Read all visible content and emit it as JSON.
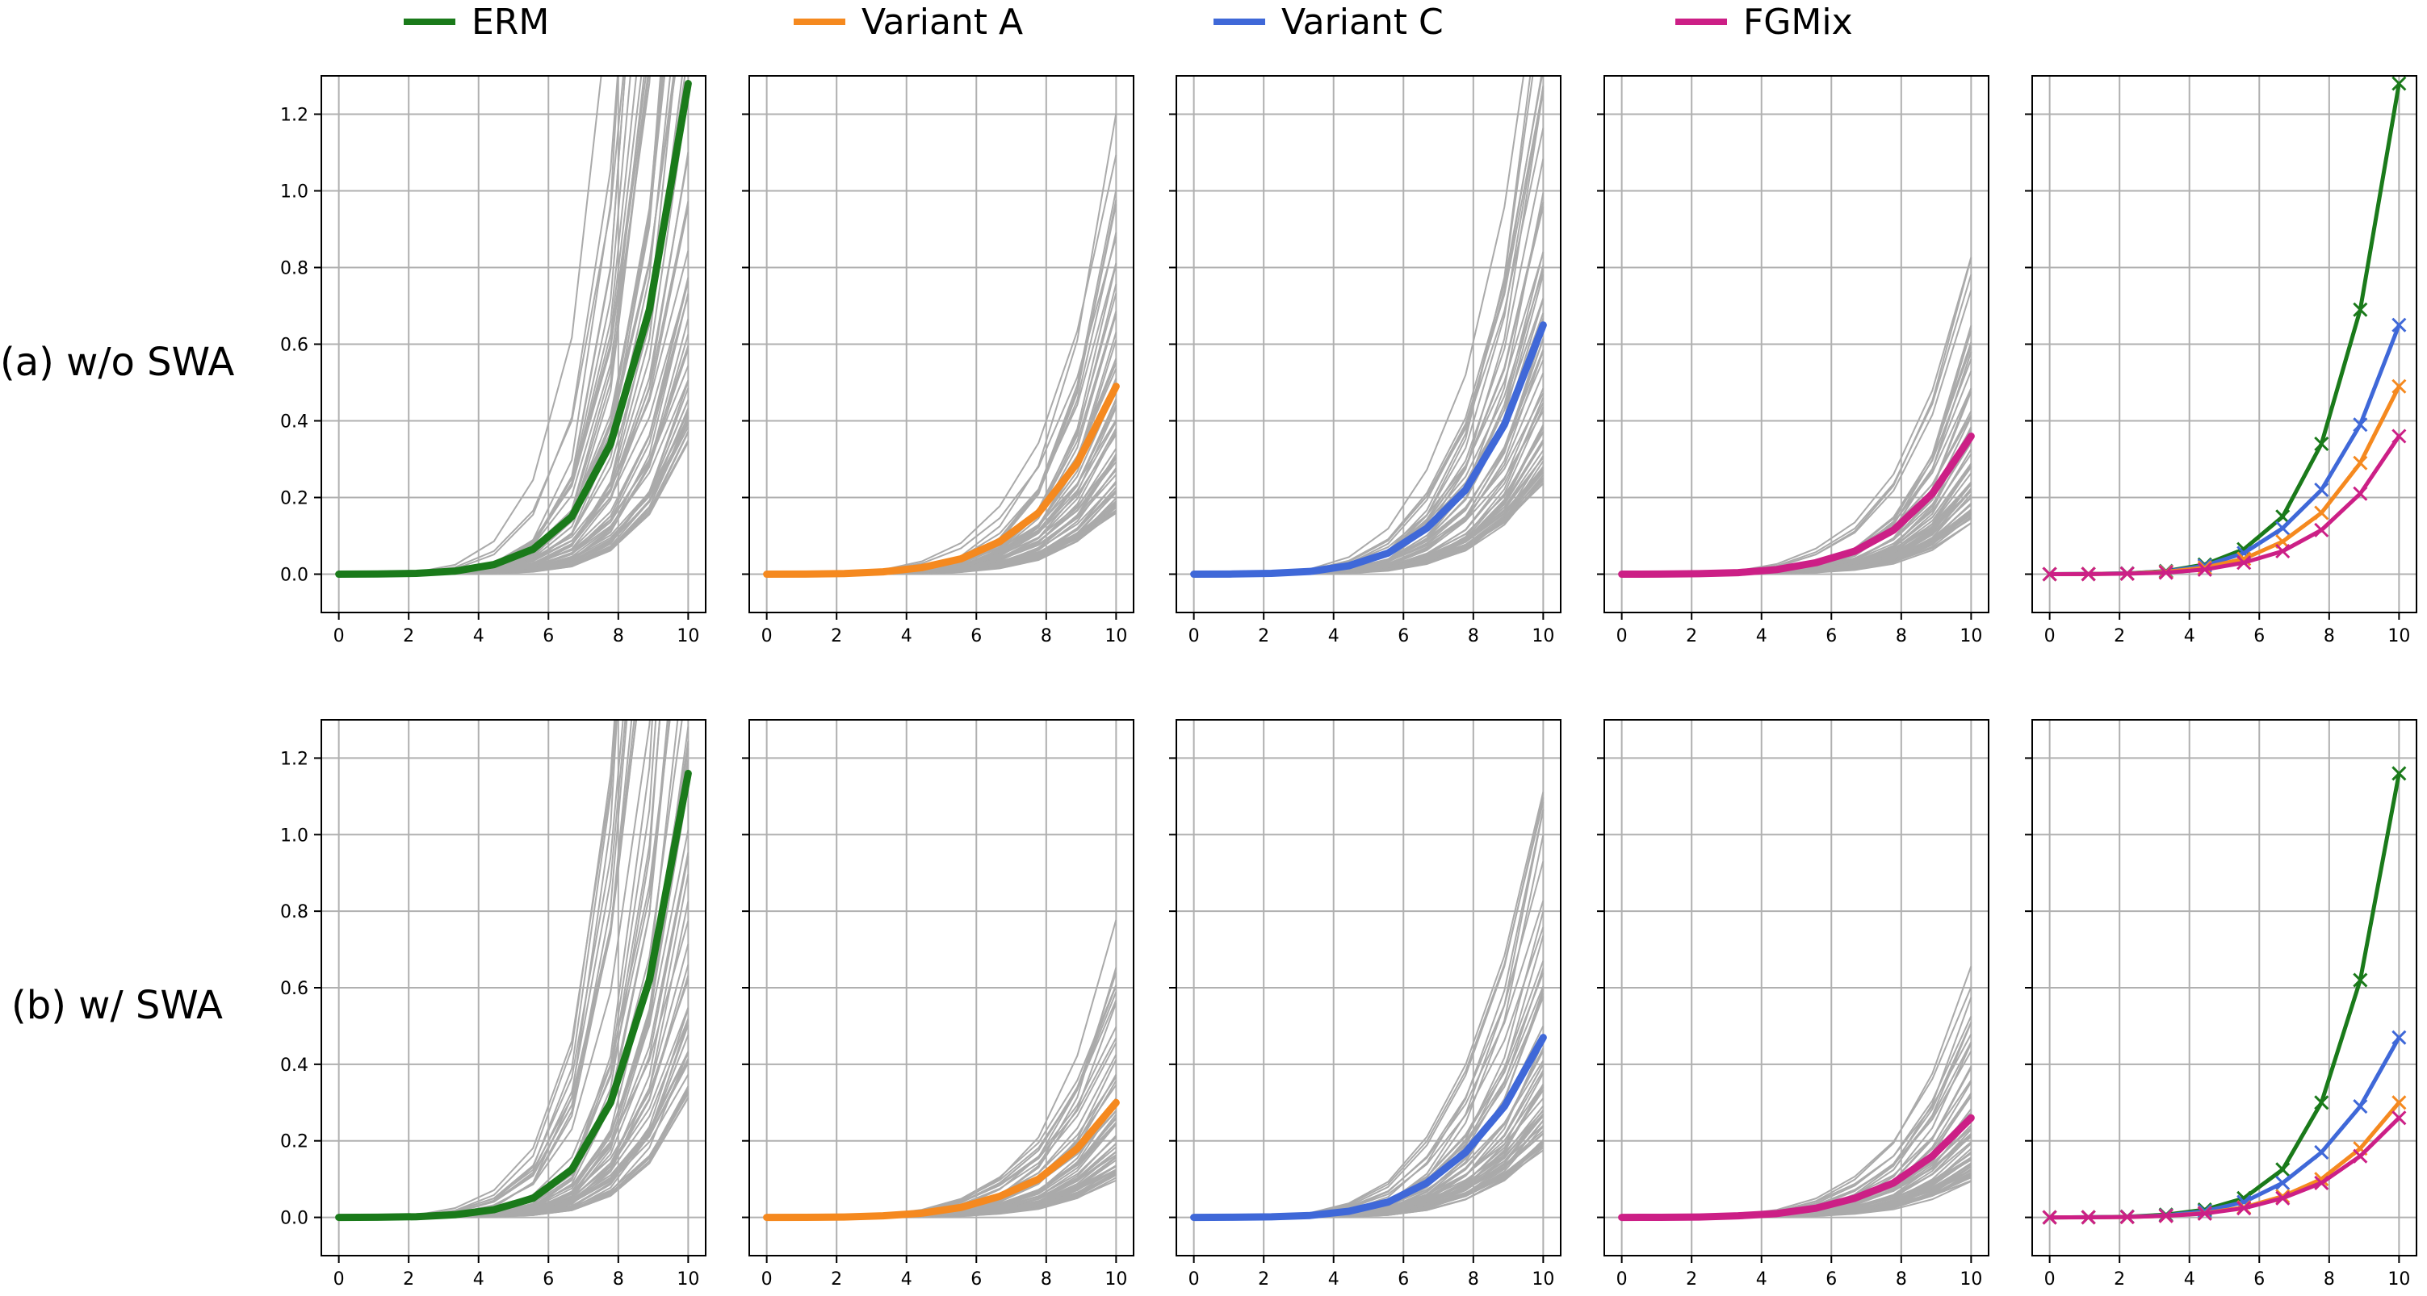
{
  "chart_data": {
    "type": "line",
    "x": [
      0,
      1.11,
      2.22,
      3.33,
      4.44,
      5.56,
      6.67,
      7.78,
      8.89,
      10
    ],
    "xticks": [
      "0",
      "2",
      "4",
      "6",
      "8",
      "10"
    ],
    "yticks": [
      "0.0",
      "0.2",
      "0.4",
      "0.6",
      "0.8",
      "1.0",
      "1.2"
    ],
    "xlim": [
      -0.5,
      10.5
    ],
    "ylim": [
      -0.1,
      1.3
    ],
    "grid": true,
    "legend": {
      "placement": "top",
      "entries": [
        {
          "name": "ERM",
          "color": "#1a7a1a"
        },
        {
          "name": "Variant A",
          "color": "#f5891f"
        },
        {
          "name": "Variant C",
          "color": "#3f68d8"
        },
        {
          "name": "FGMix",
          "color": "#cc1f86"
        }
      ]
    },
    "background_runs_color": "#aaaaaa",
    "rows": [
      {
        "label": "(a) w/o SWA",
        "series": [
          {
            "name": "ERM",
            "values": [
              0,
              0.0005,
              0.002,
              0.008,
              0.025,
              0.065,
              0.15,
              0.34,
              0.69,
              1.28
            ]
          },
          {
            "name": "Variant A",
            "values": [
              0,
              0.0003,
              0.0015,
              0.006,
              0.017,
              0.04,
              0.085,
              0.16,
              0.29,
              0.49
            ]
          },
          {
            "name": "Variant C",
            "values": [
              0,
              0.0004,
              0.002,
              0.007,
              0.022,
              0.055,
              0.12,
              0.22,
              0.39,
              0.65
            ]
          },
          {
            "name": "FGMix",
            "values": [
              0,
              0.0002,
              0.0012,
              0.004,
              0.012,
              0.03,
              0.06,
              0.115,
              0.21,
              0.36
            ]
          }
        ]
      },
      {
        "label": "(b) w/ SWA",
        "series": [
          {
            "name": "ERM",
            "values": [
              0,
              0.0004,
              0.0018,
              0.007,
              0.02,
              0.05,
              0.125,
              0.3,
              0.62,
              1.16
            ]
          },
          {
            "name": "Variant A",
            "values": [
              0,
              0.0002,
              0.001,
              0.004,
              0.011,
              0.026,
              0.055,
              0.1,
              0.18,
              0.3
            ]
          },
          {
            "name": "Variant C",
            "values": [
              0,
              0.0003,
              0.0015,
              0.005,
              0.016,
              0.04,
              0.09,
              0.17,
              0.29,
              0.47
            ]
          },
          {
            "name": "FGMix",
            "values": [
              0,
              0.0002,
              0.001,
              0.004,
              0.01,
              0.024,
              0.05,
              0.09,
              0.16,
              0.26
            ]
          }
        ]
      }
    ]
  }
}
